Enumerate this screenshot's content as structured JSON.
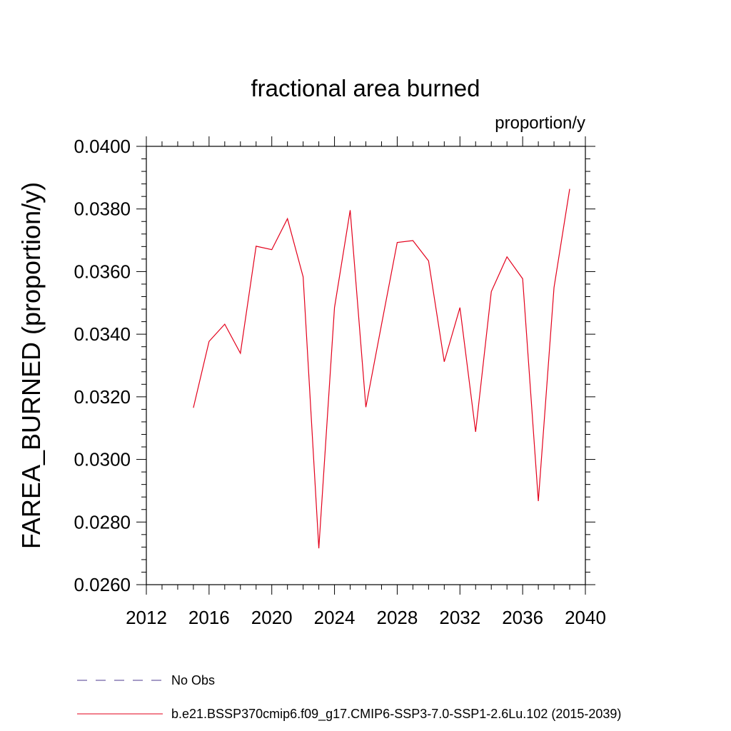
{
  "chart_data": {
    "type": "line",
    "title": "fractional area burned",
    "units_label": "proportion/y",
    "ylabel": "FAREA_BURNED  (proportion/y)",
    "xlabel": "",
    "xlim": [
      2012,
      2040
    ],
    "ylim": [
      0.026,
      0.04
    ],
    "x_ticks": [
      2012,
      2016,
      2020,
      2024,
      2028,
      2032,
      2036,
      2040
    ],
    "x_tick_labels": [
      "2012",
      "2016",
      "2020",
      "2024",
      "2028",
      "2032",
      "2036",
      "2040"
    ],
    "y_ticks": [
      0.026,
      0.028,
      0.03,
      0.032,
      0.034,
      0.036,
      0.038,
      0.04
    ],
    "y_tick_labels": [
      "0.0260",
      "0.0280",
      "0.0300",
      "0.0320",
      "0.0340",
      "0.0360",
      "0.0380",
      "0.0400"
    ],
    "grid": false,
    "legend_position": "bottom",
    "series": [
      {
        "name": "No Obs",
        "color": "#4b3a8f",
        "dash": "dashed",
        "x": [],
        "values": []
      },
      {
        "name": "b.e21.BSSP370cmip6.f09_g17.CMIP6-SSP3-7.0-SSP1-2.6Lu.102 (2015-2039)",
        "color": "#e3001b",
        "dash": "solid",
        "x": [
          2015,
          2016,
          2017,
          2018,
          2019,
          2020,
          2021,
          2022,
          2023,
          2024,
          2025,
          2026,
          2027,
          2028,
          2029,
          2030,
          2031,
          2032,
          2033,
          2034,
          2035,
          2036,
          2037,
          2038,
          2039
        ],
        "values": [
          0.03165,
          0.03377,
          0.03432,
          0.03339,
          0.03681,
          0.0367,
          0.03769,
          0.03583,
          0.02716,
          0.03485,
          0.03796,
          0.03167,
          0.03431,
          0.03693,
          0.03699,
          0.03634,
          0.03312,
          0.03485,
          0.03088,
          0.03536,
          0.03647,
          0.03577,
          0.02867,
          0.03549,
          0.03864
        ]
      }
    ]
  }
}
